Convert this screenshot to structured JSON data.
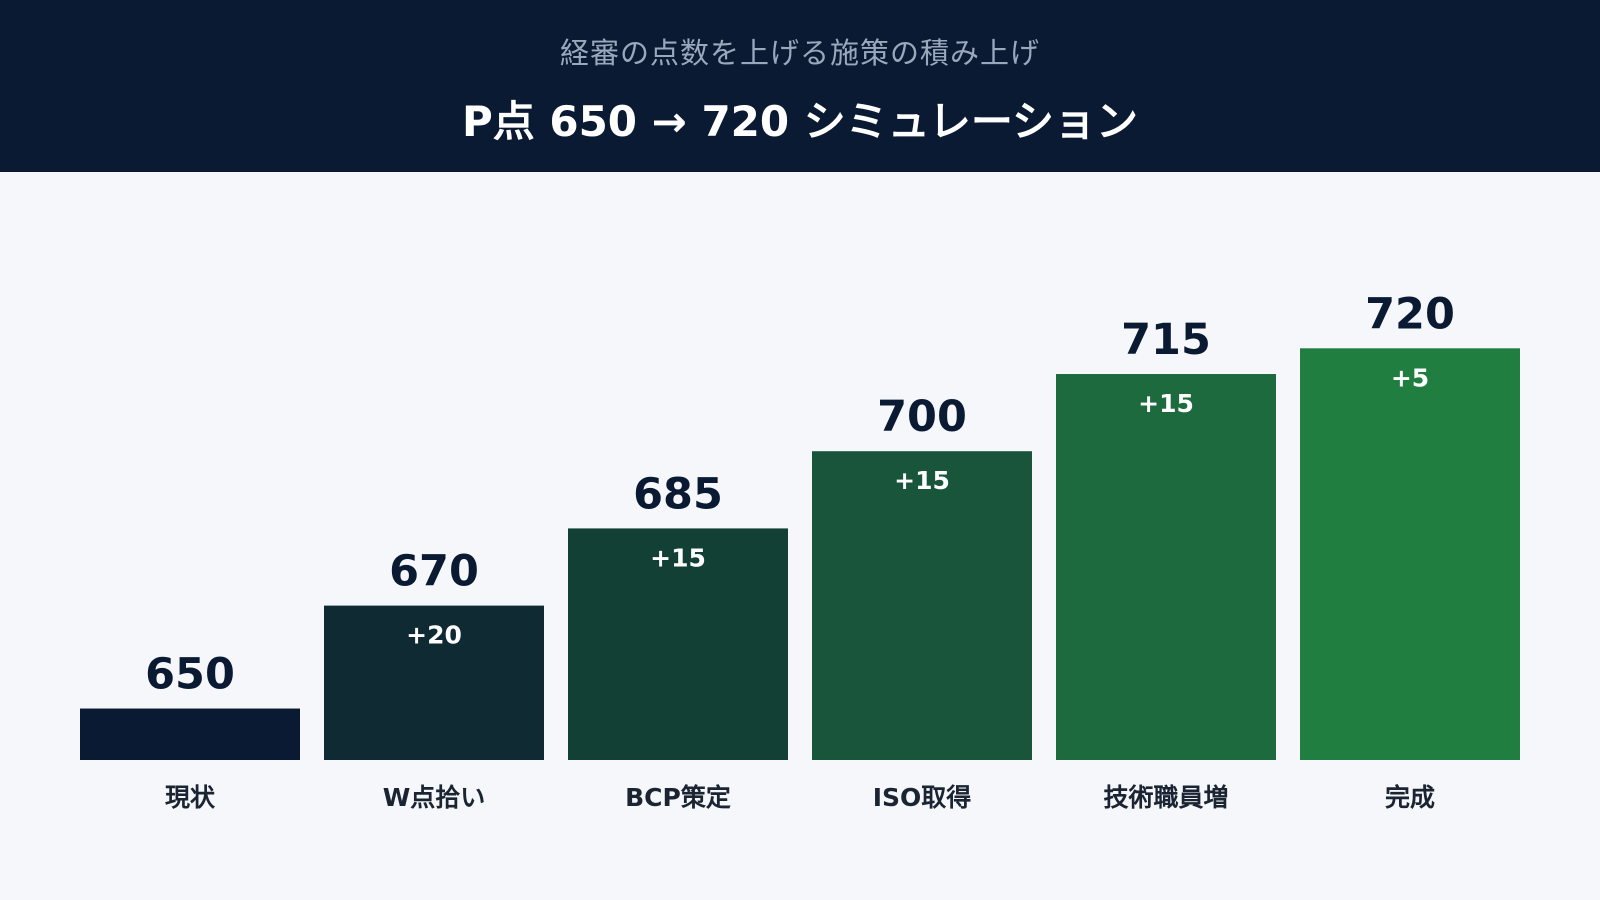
{
  "header": {
    "subtitle": "経審の点数を上げる施策の積み上げ",
    "title": "P点 650 → 720 シミュレーション"
  },
  "colors": {
    "header_bg": "#0B1A33",
    "page_bg": "#F5F7FA",
    "bars": [
      "#0B1A33",
      "#0F2A33",
      "#134035",
      "#18553B",
      "#1C6A3D",
      "#207E40"
    ]
  },
  "chart_data": {
    "type": "bar",
    "title": "P点 650 → 720 シミュレーション",
    "subtitle": "経審の点数を上げる施策の積み上げ",
    "categories": [
      "現状",
      "W点拾い",
      "BCP策定",
      "ISO取得",
      "技術職員増",
      "完成"
    ],
    "values": [
      650,
      670,
      685,
      700,
      715,
      720
    ],
    "value_labels": [
      "650",
      "670",
      "685",
      "700",
      "715",
      "720"
    ],
    "increments": [
      "",
      "+20",
      "+15",
      "+15",
      "+15",
      "+5"
    ],
    "ylim": [
      640,
      722
    ],
    "grid": false,
    "legend": "none"
  }
}
